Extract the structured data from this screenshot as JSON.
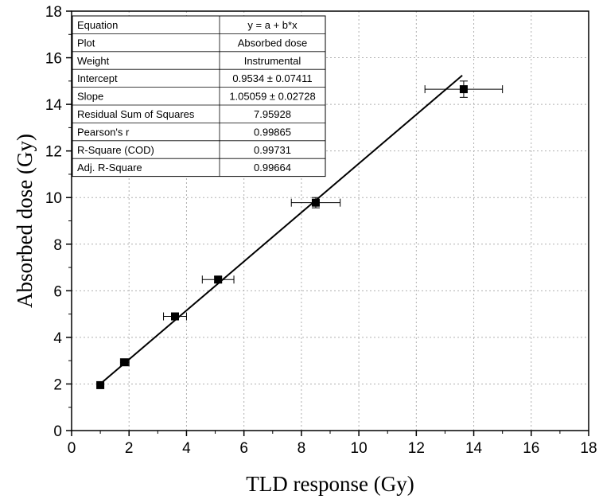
{
  "chart_data": {
    "type": "scatter",
    "xlabel": "TLD response (Gy)",
    "ylabel": "Absorbed dose (Gy)",
    "xlim": [
      0,
      18
    ],
    "ylim": [
      0,
      18
    ],
    "xticks": [
      "0",
      "2",
      "4",
      "6",
      "8",
      "10",
      "12",
      "14",
      "16",
      "18"
    ],
    "yticks": [
      "0",
      "2",
      "4",
      "6",
      "8",
      "10",
      "12",
      "14",
      "16",
      "18"
    ],
    "grid": true,
    "points": [
      {
        "x": 1.0,
        "y": 1.95,
        "xerr": 0.0,
        "yerr": 0.0
      },
      {
        "x": 1.85,
        "y": 2.93,
        "xerr": 0.15,
        "yerr": 0.1
      },
      {
        "x": 3.6,
        "y": 4.9,
        "xerr": 0.4,
        "yerr": 0.12
      },
      {
        "x": 5.1,
        "y": 6.48,
        "xerr": 0.55,
        "yerr": 0.12
      },
      {
        "x": 8.5,
        "y": 9.78,
        "xerr": 0.85,
        "yerr": 0.22
      },
      {
        "x": 13.65,
        "y": 14.65,
        "xerr": 1.35,
        "yerr": 0.35
      }
    ],
    "fit": {
      "intercept": 0.9534,
      "slope": 1.05059,
      "x_range": [
        1.0,
        13.6
      ]
    },
    "stats_table": [
      [
        "Equation",
        "y = a + b*x"
      ],
      [
        "Plot",
        "Absorbed dose"
      ],
      [
        "Weight",
        "Instrumental"
      ],
      [
        "Intercept",
        "0.9534 ± 0.07411"
      ],
      [
        "Slope",
        "1.05059 ± 0.02728"
      ],
      [
        "Residual Sum of Squares",
        "7.95928"
      ],
      [
        "Pearson's r",
        "0.99865"
      ],
      [
        "R-Square (COD)",
        "0.99731"
      ],
      [
        "Adj. R-Square",
        "0.99664"
      ]
    ],
    "colors": {
      "marker": "#000000",
      "fit_line": "#000000",
      "grid": "#b0b0b0"
    }
  }
}
